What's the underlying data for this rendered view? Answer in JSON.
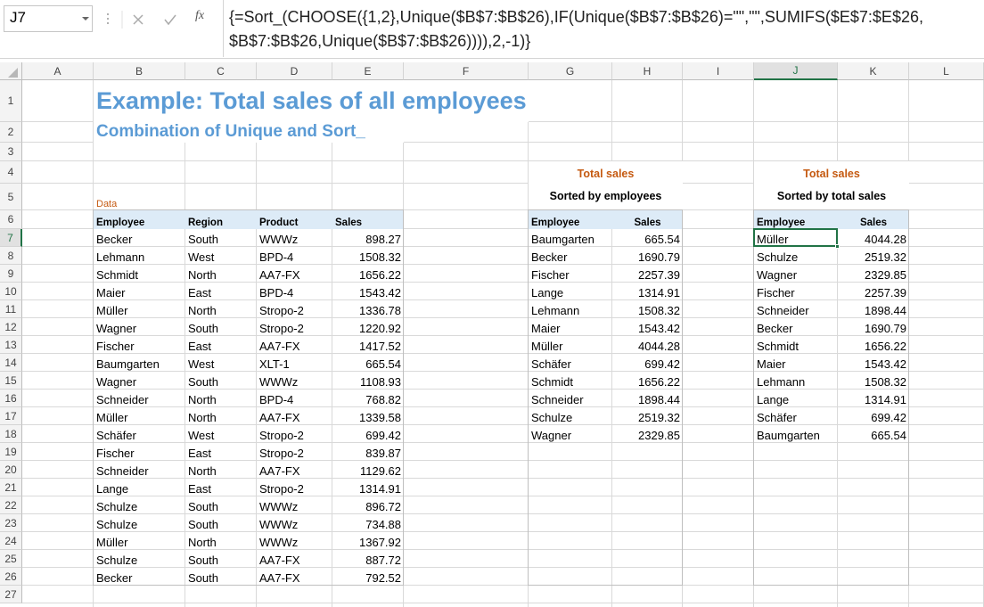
{
  "formula_bar": {
    "name_box": "J7",
    "fx_label": "fx",
    "formula": "{=Sort_(CHOOSE({1,2},Unique($B$7:$B$26),IF(Unique($B$7:$B$26)=\"\",\"\",SUMIFS($E$7:$E$26, $B$7:$B$26,Unique($B$7:$B$26)))),2,-1)}"
  },
  "columns": [
    "A",
    "B",
    "C",
    "D",
    "E",
    "F",
    "G",
    "H",
    "I",
    "J",
    "K",
    "L"
  ],
  "row_numbers": [
    1,
    2,
    3,
    4,
    5,
    6,
    7,
    8,
    9,
    10,
    11,
    12,
    13,
    14,
    15,
    16,
    17,
    18,
    19,
    20,
    21,
    22,
    23,
    24,
    25,
    26,
    27
  ],
  "title": "Example: Total sales of all employees",
  "subtitle": "Combination of Unique and Sort_",
  "data_table": {
    "label": "Data",
    "headers": [
      "Employee",
      "Region",
      "Product",
      "Sales"
    ],
    "rows": [
      [
        "Becker",
        "South",
        "WWWz",
        "898.27"
      ],
      [
        "Lehmann",
        "West",
        "BPD-4",
        "1508.32"
      ],
      [
        "Schmidt",
        "North",
        "AA7-FX",
        "1656.22"
      ],
      [
        "Maier",
        "East",
        "BPD-4",
        "1543.42"
      ],
      [
        "Müller",
        "North",
        "Stropo-2",
        "1336.78"
      ],
      [
        "Wagner",
        "South",
        "Stropo-2",
        "1220.92"
      ],
      [
        "Fischer",
        "East",
        "AA7-FX",
        "1417.52"
      ],
      [
        "Baumgarten",
        "West",
        "XLT-1",
        "665.54"
      ],
      [
        "Wagner",
        "South",
        "WWWz",
        "1108.93"
      ],
      [
        "Schneider",
        "North",
        "BPD-4",
        "768.82"
      ],
      [
        "Müller",
        "North",
        "AA7-FX",
        "1339.58"
      ],
      [
        "Schäfer",
        "West",
        "Stropo-2",
        "699.42"
      ],
      [
        "Fischer",
        "East",
        "Stropo-2",
        "839.87"
      ],
      [
        "Schneider",
        "North",
        "AA7-FX",
        "1129.62"
      ],
      [
        "Lange",
        "East",
        "Stropo-2",
        "1314.91"
      ],
      [
        "Schulze",
        "South",
        "WWWz",
        "896.72"
      ],
      [
        "Schulze",
        "South",
        "WWWz",
        "734.88"
      ],
      [
        "Müller",
        "North",
        "WWWz",
        "1367.92"
      ],
      [
        "Schulze",
        "South",
        "AA7-FX",
        "887.72"
      ],
      [
        "Becker",
        "South",
        "AA7-FX",
        "792.52"
      ]
    ]
  },
  "by_employee": {
    "title": "Total sales",
    "subtitle": "Sorted by employees",
    "headers": [
      "Employee",
      "Sales"
    ],
    "rows": [
      [
        "Baumgarten",
        "665.54"
      ],
      [
        "Becker",
        "1690.79"
      ],
      [
        "Fischer",
        "2257.39"
      ],
      [
        "Lange",
        "1314.91"
      ],
      [
        "Lehmann",
        "1508.32"
      ],
      [
        "Maier",
        "1543.42"
      ],
      [
        "Müller",
        "4044.28"
      ],
      [
        "Schäfer",
        "699.42"
      ],
      [
        "Schmidt",
        "1656.22"
      ],
      [
        "Schneider",
        "1898.44"
      ],
      [
        "Schulze",
        "2519.32"
      ],
      [
        "Wagner",
        "2329.85"
      ]
    ]
  },
  "by_total": {
    "title": "Total sales",
    "subtitle": "Sorted by total sales",
    "headers": [
      "Employee",
      "Sales"
    ],
    "rows": [
      [
        "Müller",
        "4044.28"
      ],
      [
        "Schulze",
        "2519.32"
      ],
      [
        "Wagner",
        "2329.85"
      ],
      [
        "Fischer",
        "2257.39"
      ],
      [
        "Schneider",
        "1898.44"
      ],
      [
        "Becker",
        "1690.79"
      ],
      [
        "Schmidt",
        "1656.22"
      ],
      [
        "Maier",
        "1543.42"
      ],
      [
        "Lehmann",
        "1508.32"
      ],
      [
        "Lange",
        "1314.91"
      ],
      [
        "Schäfer",
        "699.42"
      ],
      [
        "Baumgarten",
        "665.54"
      ]
    ]
  }
}
